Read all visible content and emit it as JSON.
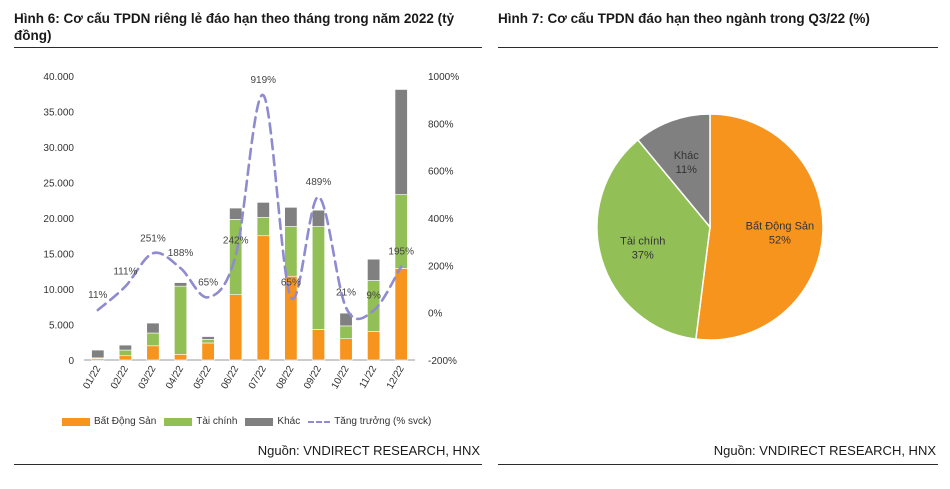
{
  "left_figure": {
    "title": "Hình 6: Cơ cấu TPDN riêng lẻ đáo hạn theo tháng trong năm 2022 (tỷ đồng)",
    "source": "Nguồn: VNDIRECT RESEARCH, HNX"
  },
  "right_figure": {
    "title": "Hình 7: Cơ cấu TPDN đáo hạn theo ngành trong Q3/22 (%)",
    "source": "Nguồn: VNDIRECT RESEARCH, HNX"
  },
  "chart_data": [
    {
      "type": "bar",
      "stacked": true,
      "categories": [
        "01/22",
        "02/22",
        "03/22",
        "04/22",
        "05/22",
        "06/22",
        "07/22",
        "08/22",
        "09/22",
        "10/22",
        "11/22",
        "12/22"
      ],
      "series": [
        {
          "name": "Bất Động Sản",
          "color": "#f7941d",
          "values": [
            200,
            600,
            2000,
            800,
            2400,
            9200,
            17500,
            11800,
            4300,
            3000,
            4000,
            12900
          ]
        },
        {
          "name": "Tài chính",
          "color": "#92c056",
          "values": [
            100,
            800,
            1800,
            9600,
            500,
            10600,
            2600,
            7000,
            14500,
            1800,
            7200,
            10400
          ]
        },
        {
          "name": "Khác",
          "color": "#808080",
          "values": [
            1100,
            700,
            1400,
            500,
            400,
            1600,
            2100,
            2700,
            2300,
            1800,
            3000,
            14800
          ]
        }
      ],
      "line": {
        "name": "Tăng trưởng (% svck)",
        "color": "#8f8bd0",
        "values": [
          11,
          111,
          251,
          188,
          65,
          242,
          919,
          65,
          489,
          21,
          9,
          195
        ],
        "labels": [
          "11%",
          "111%",
          "251%",
          "188%",
          "65%",
          "242%",
          "919%",
          "65%",
          "489%",
          "21%",
          "9%",
          "195%"
        ]
      },
      "y_left": {
        "min": 0,
        "max": 40000,
        "ticks": [
          "0",
          "5.000",
          "10.000",
          "15.000",
          "20.000",
          "25.000",
          "30.000",
          "35.000",
          "40.000"
        ]
      },
      "y_right": {
        "min": -200,
        "max": 1000,
        "ticks": [
          "-200%",
          "0%",
          "200%",
          "400%",
          "600%",
          "800%",
          "1000%"
        ]
      },
      "legend": [
        "Bất Động Sản",
        "Tài chính",
        "Khác",
        "Tăng trưởng (% svck)"
      ]
    },
    {
      "type": "pie",
      "slices": [
        {
          "label": "Bất Động Sản",
          "value": 52,
          "pct_label": "52%",
          "color": "#f7941d"
        },
        {
          "label": "Tài chính",
          "value": 37,
          "pct_label": "37%",
          "color": "#92c056"
        },
        {
          "label": "Khác",
          "value": 11,
          "pct_label": "11%",
          "color": "#808080"
        }
      ]
    }
  ]
}
